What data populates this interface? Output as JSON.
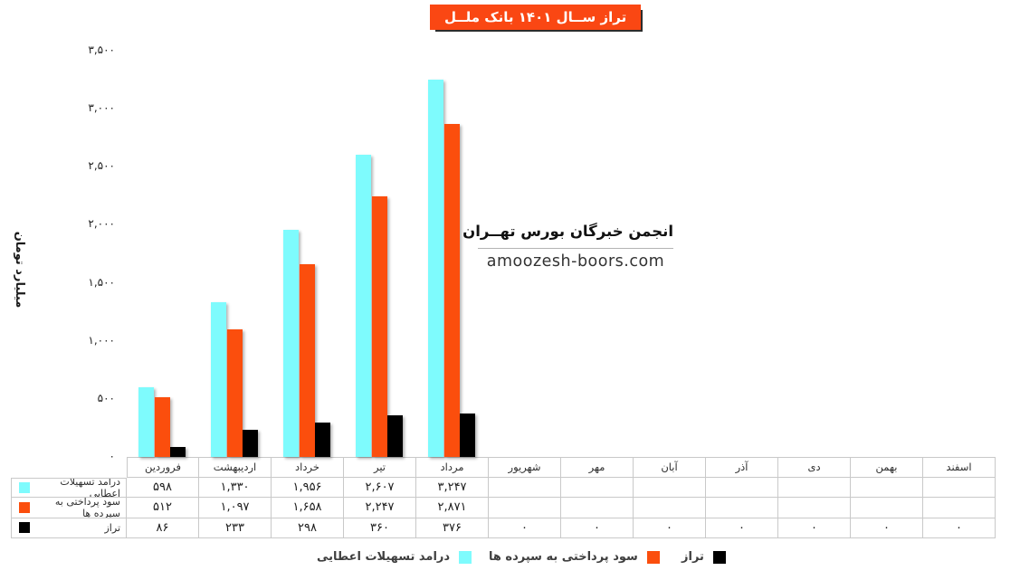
{
  "title": {
    "text": "تراز ســال ۱۴۰۱ بانک ملــل"
  },
  "colors": {
    "facilities_income": "#7EFBFD",
    "deposit_interest": "#FB4E0D",
    "balance": "#000000",
    "title_background": "#FA4713",
    "table_border": "#C9C9C9"
  },
  "y_axis": {
    "title": "میلیارد تومان",
    "ticks": [
      {
        "value": 0,
        "label": "۰"
      },
      {
        "value": 500,
        "label": "۵۰۰"
      },
      {
        "value": 1000,
        "label": "۱,۰۰۰"
      },
      {
        "value": 1500,
        "label": "۱,۵۰۰"
      },
      {
        "value": 2000,
        "label": "۲,۰۰۰"
      },
      {
        "value": 2500,
        "label": "۲,۵۰۰"
      },
      {
        "value": 3000,
        "label": "۳,۰۰۰"
      },
      {
        "value": 3500,
        "label": "۳,۵۰۰"
      }
    ]
  },
  "chart_data": {
    "type": "bar",
    "title": "تراز ســال ۱۴۰۱ بانک ملــل",
    "ylabel": "میلیارد تومان",
    "ylim": [
      0,
      3500
    ],
    "grid": false,
    "legend_position": "bottom",
    "categories": [
      "فروردین",
      "اردیبهشت",
      "خرداد",
      "تیر",
      "مرداد",
      "شهریور",
      "مهر",
      "آبان",
      "آذر",
      "دی",
      "بهمن",
      "اسفند"
    ],
    "series": [
      {
        "name": "درامد تسهیلات اعطایی",
        "color": "#7EFBFD",
        "values": [
          598,
          1330,
          1956,
          2607,
          3247,
          null,
          null,
          null,
          null,
          null,
          null,
          null
        ],
        "display": [
          "۵۹۸",
          "۱,۳۳۰",
          "۱,۹۵۶",
          "۲,۶۰۷",
          "۳,۲۴۷",
          "",
          "",
          "",
          "",
          "",
          "",
          ""
        ]
      },
      {
        "name": "سود پرداختی به سپرده ها",
        "color": "#FB4E0D",
        "values": [
          512,
          1097,
          1658,
          2247,
          2871,
          null,
          null,
          null,
          null,
          null,
          null,
          null
        ],
        "display": [
          "۵۱۲",
          "۱,۰۹۷",
          "۱,۶۵۸",
          "۲,۲۴۷",
          "۲,۸۷۱",
          "",
          "",
          "",
          "",
          "",
          "",
          ""
        ]
      },
      {
        "name": "تراز",
        "color": "#000000",
        "values": [
          86,
          233,
          298,
          360,
          376,
          0,
          0,
          0,
          0,
          0,
          0,
          0
        ],
        "display": [
          "۸۶",
          "۲۳۳",
          "۲۹۸",
          "۳۶۰",
          "۳۷۶",
          "۰",
          "۰",
          "۰",
          "۰",
          "۰",
          "۰",
          "۰"
        ]
      }
    ]
  },
  "legend": {
    "items": [
      {
        "label": "درامد تسهیلات اعطایی",
        "color": "#7EFBFD"
      },
      {
        "label": "سود پرداختی به سپرده ها",
        "color": "#FB4E0D"
      },
      {
        "label": "تراز",
        "color": "#000000"
      }
    ]
  },
  "watermark": {
    "line1": "انجمن خبرگان بورس تهــران",
    "line2": "amoozesh-boors.com"
  }
}
